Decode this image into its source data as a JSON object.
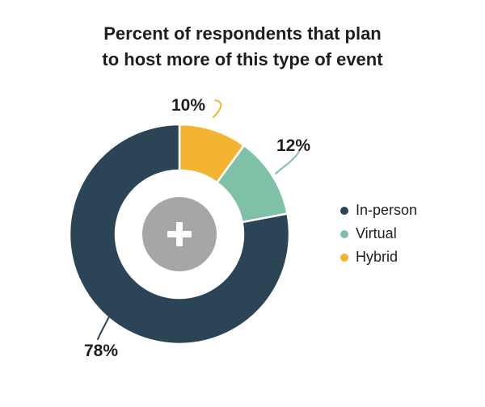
{
  "chart_data": {
    "type": "pie",
    "title_lines": [
      "Percent of respondents that plan",
      "to host more of this type of event"
    ],
    "slices": [
      {
        "label": "Hybrid",
        "value": 10,
        "display": "10%",
        "color": "#f3b531"
      },
      {
        "label": "Virtual",
        "value": 12,
        "display": "12%",
        "color": "#7fc1a6"
      },
      {
        "label": "In-person",
        "value": 78,
        "display": "78%",
        "color": "#2b4556"
      }
    ],
    "legend": {
      "position": "right",
      "items": [
        {
          "label": "In-person",
          "color": "#2b4556"
        },
        {
          "label": "Virtual",
          "color": "#7fc1a6"
        },
        {
          "label": "Hybrid",
          "color": "#f3b531"
        }
      ]
    },
    "center_icon": "plus-icon",
    "center_color": "#a6a6a6"
  }
}
